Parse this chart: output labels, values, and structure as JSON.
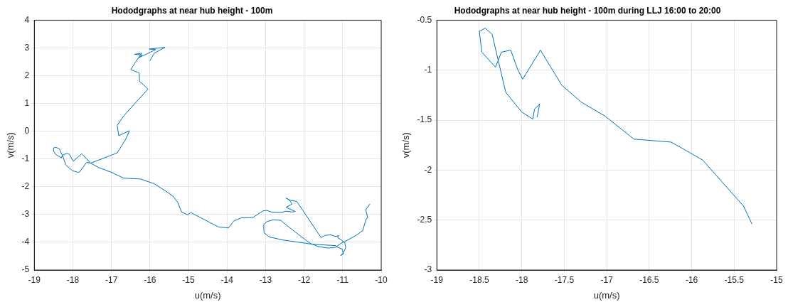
{
  "chart_data": [
    {
      "type": "line",
      "title": "Hododgraphs at near hub height - 100m",
      "xlabel": "u(m/s)",
      "ylabel": "v(m/s)",
      "xlim": [
        -19,
        -10
      ],
      "xticks": [
        -19,
        -18,
        -17,
        -16,
        -15,
        -14,
        -13,
        -12,
        -11,
        -10
      ],
      "ylim": [
        -5,
        4
      ],
      "yticks": [
        -5,
        -4,
        -3,
        -2,
        -1,
        0,
        1,
        2,
        3,
        4
      ],
      "grid": true,
      "legend": false,
      "series": [
        {
          "color": "#0072bd",
          "x": [
            -16.0,
            -15.89,
            -15.61,
            -16.02,
            -15.85,
            -16.3,
            -16.22,
            -16.4,
            -16.2,
            -16.3,
            -16.5,
            -16.28,
            -16.27,
            -16.05,
            -16.67,
            -16.85,
            -16.81,
            -16.53,
            -16.63,
            -16.85,
            -17.54,
            -17.64,
            -17.83,
            -17.87,
            -18.01,
            -18.18,
            -18.27,
            -18.3,
            -18.45,
            -18.49,
            -18.5,
            -18.44,
            -18.35,
            -18.28,
            -18.15,
            -18.09,
            -17.99,
            -17.77,
            -17.54,
            -17.31,
            -17.03,
            -16.68,
            -16.25,
            -15.89,
            -15.52,
            -15.39,
            -15.28,
            -15.18,
            -15.02,
            -14.94,
            -14.76,
            -14.22,
            -13.96,
            -13.83,
            -13.63,
            -13.33,
            -13.07,
            -12.97,
            -12.85,
            -12.6,
            -12.47,
            -12.31,
            -12.23,
            -12.47,
            -12.31,
            -12.39,
            -12.47,
            -12.36,
            -12.19,
            -11.56,
            -11.45,
            -11.31,
            -11.18,
            -11.1,
            -11.13,
            -10.95,
            -10.92,
            -10.97,
            -11.05,
            -10.98,
            -11.01,
            -11.13,
            -11.18,
            -11.78,
            -12.54,
            -12.9,
            -13.04,
            -13.05,
            -12.97,
            -12.8,
            -12.6,
            -12.54,
            -12.24,
            -11.84,
            -11.64,
            -11.38,
            -11.18,
            -11.05,
            -10.95,
            -10.65,
            -10.48,
            -10.39,
            -10.35,
            -10.4,
            -10.29
          ],
          "values": [
            2.54,
            2.81,
            3.02,
            2.96,
            2.94,
            2.64,
            2.81,
            2.77,
            2.75,
            2.64,
            2.22,
            2.1,
            1.8,
            1.52,
            0.57,
            0.21,
            -0.16,
            0.02,
            -0.29,
            -0.78,
            -1.15,
            -1.12,
            -1.47,
            -1.48,
            -1.42,
            -1.22,
            -0.87,
            -0.96,
            -0.83,
            -0.73,
            -0.6,
            -0.58,
            -0.63,
            -0.86,
            -0.8,
            -0.83,
            -1.08,
            -0.81,
            -1.15,
            -1.32,
            -1.46,
            -1.69,
            -1.72,
            -1.89,
            -2.22,
            -2.36,
            -2.56,
            -2.91,
            -3.01,
            -2.93,
            -3.06,
            -3.45,
            -3.48,
            -3.24,
            -3.12,
            -3.11,
            -2.87,
            -2.85,
            -2.91,
            -2.93,
            -2.88,
            -2.91,
            -2.89,
            -2.74,
            -2.62,
            -2.47,
            -2.41,
            -2.49,
            -2.53,
            -3.83,
            -3.75,
            -3.73,
            -3.79,
            -3.76,
            -3.83,
            -4.0,
            -4.18,
            -4.35,
            -4.48,
            -4.42,
            -4.25,
            -4.18,
            -4.12,
            -4.07,
            -3.92,
            -3.81,
            -3.66,
            -3.37,
            -3.26,
            -3.19,
            -3.21,
            -3.29,
            -3.62,
            -4.04,
            -4.15,
            -4.21,
            -4.18,
            -4.04,
            -3.98,
            -3.75,
            -3.58,
            -3.16,
            -3.12,
            -2.83,
            -2.62
          ]
        }
      ]
    },
    {
      "type": "line",
      "title": "Hododgraphs at near hub height - 100m during LLJ 16:00 to 20:00",
      "xlabel": "u(m/s)",
      "ylabel": "v(m/s)",
      "xlim": [
        -19,
        -15
      ],
      "xticks": [
        -19,
        -18.5,
        -18,
        -17.5,
        -17,
        -16.5,
        -16,
        -15.5,
        -15
      ],
      "ylim": [
        -3,
        -0.5
      ],
      "yticks": [
        -3,
        -2.5,
        -2,
        -1.5,
        -1,
        -0.5
      ],
      "grid": true,
      "legend": false,
      "series": [
        {
          "color": "#0072bd",
          "x": [
            -17.82,
            -17.79,
            -17.85,
            -17.87,
            -18.0,
            -18.19,
            -18.35,
            -18.43,
            -18.5,
            -18.47,
            -18.31,
            -18.24,
            -18.13,
            -18.05,
            -17.99,
            -17.78,
            -17.53,
            -17.3,
            -17.02,
            -16.68,
            -16.24,
            -15.87,
            -15.62,
            -15.39,
            -15.29
          ],
          "values": [
            -1.47,
            -1.34,
            -1.39,
            -1.49,
            -1.42,
            -1.22,
            -0.64,
            -0.58,
            -0.61,
            -0.82,
            -0.97,
            -0.82,
            -0.8,
            -0.99,
            -1.09,
            -0.8,
            -1.15,
            -1.32,
            -1.46,
            -1.69,
            -1.72,
            -1.9,
            -2.14,
            -2.36,
            -2.54
          ]
        }
      ]
    }
  ]
}
